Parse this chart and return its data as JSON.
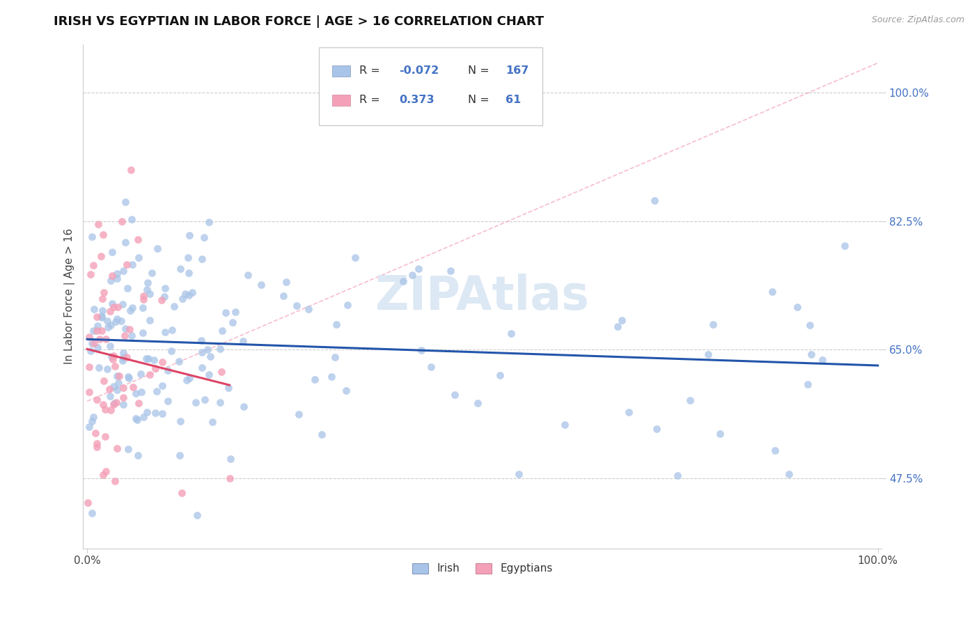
{
  "title": "IRISH VS EGYPTIAN IN LABOR FORCE | AGE > 16 CORRELATION CHART",
  "source_text": "Source: ZipAtlas.com",
  "ylabel": "In Labor Force | Age > 16",
  "watermark": "ZIPAtlas",
  "irish_R": -0.072,
  "irish_N": 167,
  "egyptian_R": 0.373,
  "egyptian_N": 61,
  "irish_color": "#a8c4e8",
  "egyptian_color": "#f4a0b8",
  "irish_line_color": "#2255aa",
  "egyptian_line_color": "#dd4466",
  "diag_line_color": "#f4a0b8",
  "background_color": "#ffffff",
  "title_fontsize": 13,
  "ytick_color": "#4472c4",
  "legend_R_color": "#4472c4",
  "legend_N_color": "#4472c4",
  "legend_label_color": "#333333",
  "grid_color": "#cccccc",
  "watermark_color": "#dce8f4"
}
